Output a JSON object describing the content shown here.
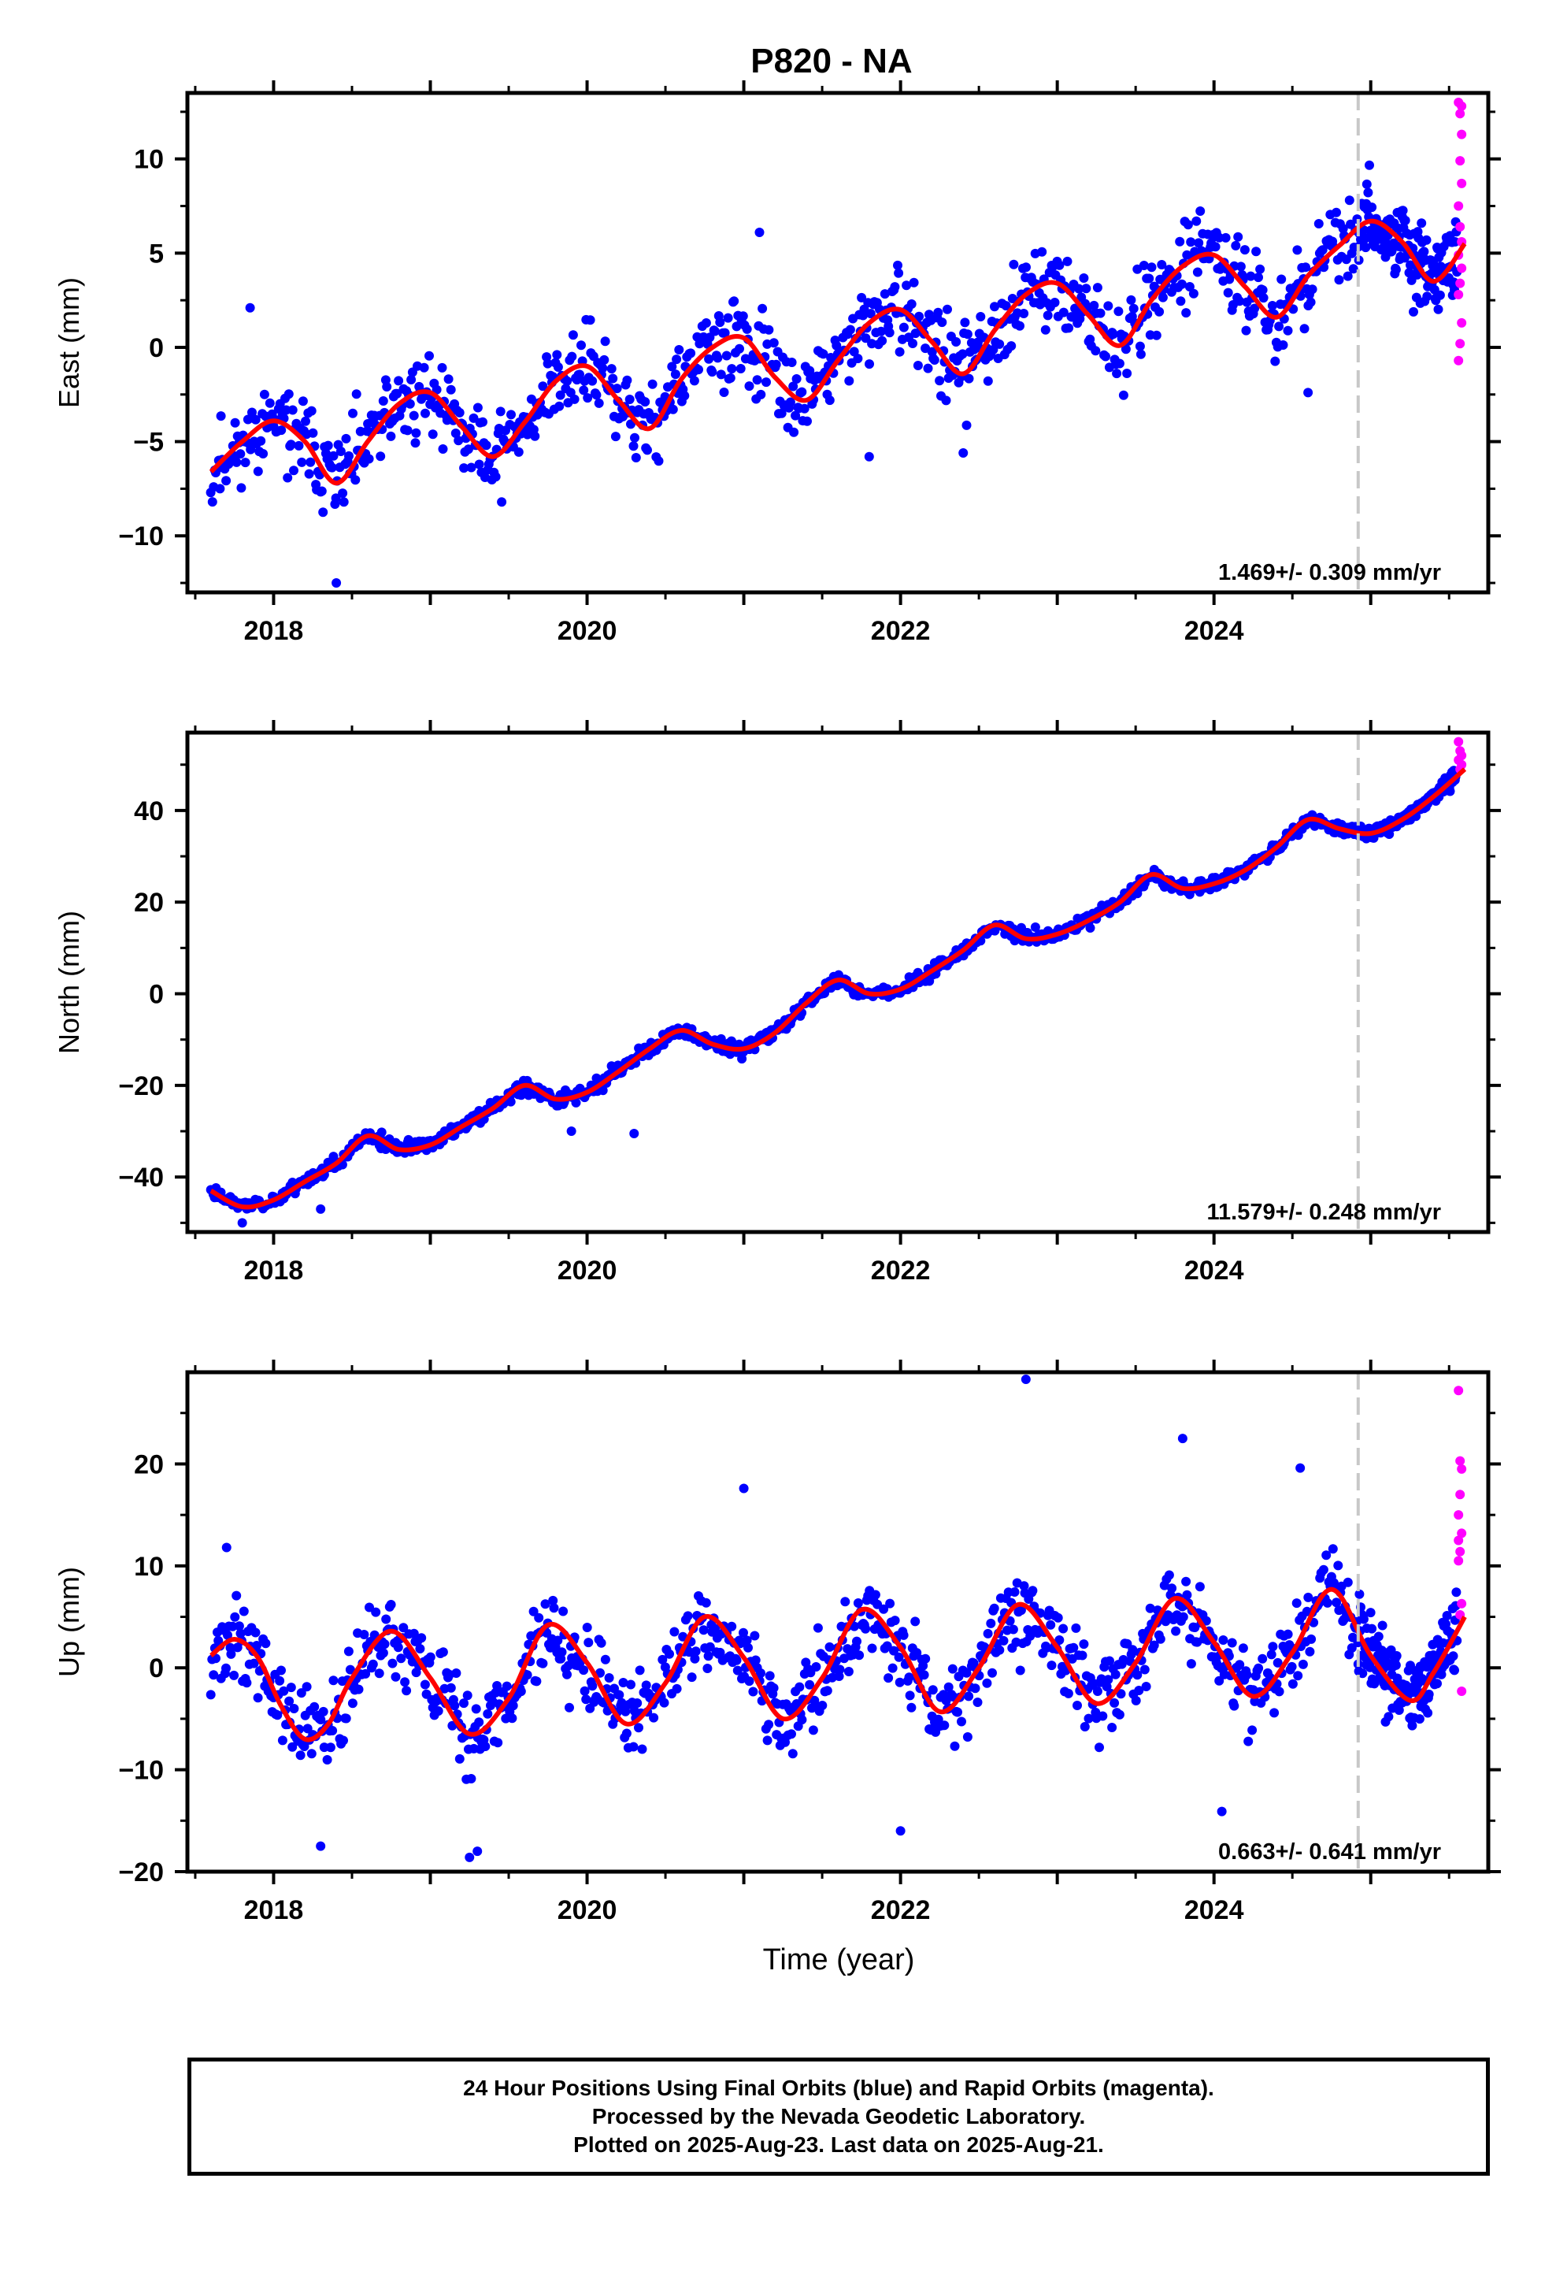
{
  "title": "P820 - NA",
  "xlabel": "Time (year)",
  "caption": {
    "line1": "24 Hour Positions Using Final Orbits (blue) and Rapid Orbits (magenta).",
    "line2": "Processed by the Nevada Geodetic Laboratory.",
    "line3": "Plotted on 2025-Aug-23. Last data on 2025-Aug-21."
  },
  "colors": {
    "final_orbits": "#0000ff",
    "rapid_orbits": "#ff00ff",
    "fit": "#ff0000",
    "rapid_boundary": "#c8c8c8"
  },
  "chart_data": [
    {
      "type": "scatter",
      "component": "East",
      "ylabel": "East (mm)",
      "xlim": [
        2017.45,
        2025.75
      ],
      "ylim": [
        -13,
        13.5
      ],
      "yticks": [
        -10,
        -5,
        0,
        5,
        10
      ],
      "xticks": [
        2018,
        2020,
        2022,
        2024
      ],
      "rapid_start": 2024.92,
      "rate_label": "1.469+/- 0.309 mm/yr",
      "fit": {
        "x": [
          2017.6,
          2017.8,
          2018.0,
          2018.2,
          2018.4,
          2018.6,
          2018.8,
          2019.0,
          2019.2,
          2019.4,
          2019.6,
          2019.8,
          2020.0,
          2020.2,
          2020.4,
          2020.6,
          2020.8,
          2021.0,
          2021.2,
          2021.4,
          2021.6,
          2021.8,
          2022.0,
          2022.2,
          2022.4,
          2022.6,
          2022.8,
          2023.0,
          2023.2,
          2023.4,
          2023.6,
          2023.8,
          2024.0,
          2024.2,
          2024.4,
          2024.6,
          2024.8,
          2025.0,
          2025.2,
          2025.4,
          2025.6
        ],
        "y": [
          -6.6,
          -5.0,
          -3.9,
          -5.0,
          -7.2,
          -5.0,
          -3.0,
          -2.4,
          -4.2,
          -5.8,
          -4.0,
          -1.8,
          -1.0,
          -2.8,
          -4.3,
          -1.7,
          0.0,
          0.5,
          -1.6,
          -2.8,
          -0.7,
          1.3,
          2.0,
          0.3,
          -1.4,
          0.9,
          2.8,
          3.4,
          1.7,
          0.1,
          2.5,
          4.3,
          4.9,
          3.2,
          1.6,
          3.8,
          5.4,
          6.7,
          5.6,
          3.5,
          5.5
        ]
      },
      "final_series": {
        "t0": 2017.6,
        "t1": 2024.92,
        "n": 900,
        "scatter": 1.9,
        "seed": 11,
        "outliers": [
          [
            2017.85,
            2.1
          ],
          [
            2018.4,
            -12.5
          ],
          [
            2021.1,
            6.1
          ],
          [
            2021.8,
            -5.8
          ],
          [
            2022.4,
            -5.6
          ],
          [
            2024.6,
            -2.4
          ]
        ]
      },
      "rapid_points": [
        [
          2025.56,
          13.0
        ],
        [
          2025.57,
          12.4
        ],
        [
          2025.58,
          11.3
        ],
        [
          2025.57,
          9.9
        ],
        [
          2025.58,
          8.7
        ],
        [
          2025.56,
          7.5
        ],
        [
          2025.57,
          6.4
        ],
        [
          2025.58,
          5.6
        ],
        [
          2025.56,
          4.9
        ],
        [
          2025.58,
          4.2
        ],
        [
          2025.57,
          3.4
        ],
        [
          2025.56,
          2.8
        ],
        [
          2025.58,
          1.3
        ],
        [
          2025.57,
          0.2
        ],
        [
          2025.56,
          -0.7
        ],
        [
          2025.58,
          12.8
        ]
      ]
    },
    {
      "type": "scatter",
      "component": "North",
      "ylabel": "North (mm)",
      "xlim": [
        2017.45,
        2025.75
      ],
      "ylim": [
        -52,
        57
      ],
      "yticks": [
        -40,
        -20,
        0,
        20,
        40
      ],
      "xticks": [
        2018,
        2020,
        2022,
        2024
      ],
      "rapid_start": 2024.92,
      "rate_label": "11.579+/- 0.248 mm/yr",
      "fit": {
        "x": [
          2017.6,
          2017.8,
          2018.0,
          2018.2,
          2018.4,
          2018.6,
          2018.8,
          2019.0,
          2019.2,
          2019.4,
          2019.6,
          2019.8,
          2020.0,
          2020.2,
          2020.4,
          2020.6,
          2020.8,
          2021.0,
          2021.2,
          2021.4,
          2021.6,
          2021.8,
          2022.0,
          2022.2,
          2022.4,
          2022.6,
          2022.8,
          2023.0,
          2023.2,
          2023.4,
          2023.6,
          2023.8,
          2024.0,
          2024.2,
          2024.4,
          2024.6,
          2024.8,
          2025.0,
          2025.2,
          2025.4,
          2025.6
        ],
        "y": [
          -43,
          -46.5,
          -45,
          -41,
          -37,
          -31,
          -34,
          -33,
          -29,
          -25,
          -20,
          -23,
          -21.5,
          -17,
          -12,
          -8,
          -11,
          -12,
          -8.5,
          -2,
          3,
          0,
          1,
          5,
          9.5,
          15,
          12,
          13,
          16,
          20,
          26,
          23,
          24,
          27,
          32,
          38,
          36,
          35,
          38,
          43,
          49
        ]
      },
      "final_series": {
        "t0": 2017.6,
        "t1": 2024.92,
        "n": 900,
        "scatter": 1.3,
        "seed": 23,
        "outliers": [
          [
            2017.8,
            -50
          ],
          [
            2018.3,
            -47
          ],
          [
            2019.9,
            -30
          ],
          [
            2020.3,
            -30.5
          ]
        ]
      },
      "rapid_points": [
        [
          2025.56,
          55
        ],
        [
          2025.57,
          53
        ],
        [
          2025.58,
          52
        ],
        [
          2025.56,
          51
        ],
        [
          2025.58,
          50
        ],
        [
          2025.57,
          49
        ]
      ]
    },
    {
      "type": "scatter",
      "component": "Up",
      "ylabel": "Up (mm)",
      "xlim": [
        2017.45,
        2025.75
      ],
      "ylim": [
        -20,
        29
      ],
      "yticks": [
        -20,
        -10,
        0,
        10,
        20
      ],
      "xticks": [
        2018,
        2020,
        2022,
        2024
      ],
      "rapid_start": 2024.92,
      "rate_label": "0.663+/- 0.641 mm/yr",
      "fit": {
        "x": [
          2017.6,
          2017.75,
          2017.9,
          2018.05,
          2018.2,
          2018.35,
          2018.5,
          2018.75,
          2019.0,
          2019.25,
          2019.5,
          2019.75,
          2020.0,
          2020.25,
          2020.5,
          2020.75,
          2021.0,
          2021.25,
          2021.5,
          2021.75,
          2022.0,
          2022.25,
          2022.5,
          2022.75,
          2023.0,
          2023.25,
          2023.5,
          2023.75,
          2024.0,
          2024.25,
          2024.5,
          2024.75,
          2025.0,
          2025.25,
          2025.4,
          2025.6
        ],
        "y": [
          1.2,
          2.8,
          1.0,
          -3.8,
          -7.0,
          -5.5,
          -1.0,
          3.6,
          -1.0,
          -6.5,
          -3.0,
          4.2,
          0.5,
          -5.5,
          -1.5,
          5.0,
          1.0,
          -5.0,
          -1.0,
          5.7,
          2.0,
          -4.3,
          0.0,
          6.2,
          2.0,
          -3.5,
          0.5,
          6.8,
          2.5,
          -2.8,
          1.5,
          7.7,
          1.2,
          -3.2,
          -0.5,
          5.0
        ]
      },
      "final_series": {
        "t0": 2017.6,
        "t1": 2024.92,
        "n": 900,
        "scatter": 3.4,
        "seed": 37,
        "outliers": [
          [
            2017.7,
            11.8
          ],
          [
            2018.3,
            -17.5
          ],
          [
            2019.25,
            -18.6
          ],
          [
            2019.3,
            -18.0
          ],
          [
            2021.0,
            17.6
          ],
          [
            2022.0,
            -16.0
          ],
          [
            2022.8,
            28.3
          ],
          [
            2023.8,
            22.5
          ],
          [
            2024.05,
            -14.1
          ],
          [
            2024.55,
            19.6
          ]
        ]
      },
      "rapid_points": [
        [
          2025.56,
          27.2
        ],
        [
          2025.57,
          20.3
        ],
        [
          2025.58,
          19.5
        ],
        [
          2025.57,
          17.0
        ],
        [
          2025.56,
          15.0
        ],
        [
          2025.58,
          13.2
        ],
        [
          2025.57,
          11.4
        ],
        [
          2025.56,
          10.5
        ],
        [
          2025.58,
          6.3
        ],
        [
          2025.57,
          5.2
        ],
        [
          2025.58,
          -2.3
        ],
        [
          2025.56,
          12.5
        ]
      ]
    }
  ]
}
